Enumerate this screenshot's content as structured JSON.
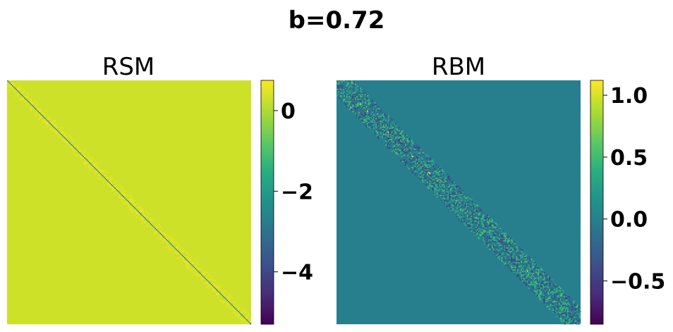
{
  "suptitle": "b=0.72",
  "chart_data": [
    {
      "type": "heatmap",
      "title": "RSM",
      "matrix_desc_size": 200,
      "background_value": 0.3,
      "diagonal_value": -2.6,
      "near_diagonal_value": 0.6,
      "colorbar": {
        "range": [
          -5.3,
          0.75
        ],
        "ticks": [
          0,
          -2,
          -4
        ],
        "tick_labels": [
          "0",
          "−2",
          "−4"
        ]
      },
      "colormap": "viridis"
    },
    {
      "type": "heatmap",
      "title": "RBM",
      "matrix_desc_size": 200,
      "background_value": 0.0,
      "band_value_range": [
        -0.5,
        0.6
      ],
      "diagonal_peak_value": 1.1,
      "colorbar": {
        "range": [
          -0.85,
          1.12
        ],
        "ticks": [
          1.0,
          0.5,
          0.0,
          -0.5
        ],
        "tick_labels": [
          "1.0",
          "0.5",
          "0.0",
          "−0.5"
        ]
      },
      "colormap": "viridis"
    }
  ]
}
